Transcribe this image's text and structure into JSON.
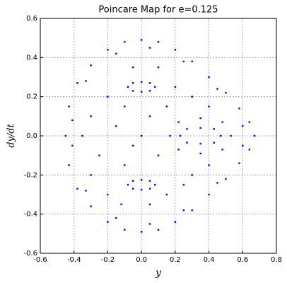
{
  "chart_data": {
    "type": "scatter",
    "title": "Poincare Map for e=0.125",
    "xlabel": "y",
    "ylabel": "dy/dt",
    "xlim": [
      -0.6,
      0.8
    ],
    "ylim": [
      -0.6,
      0.6
    ],
    "xticks": [
      -0.6,
      -0.4,
      -0.2,
      {
        "value": 0,
        "label": "0.0"
      },
      0.2,
      0.4,
      0.6,
      0.8
    ],
    "yticks": [
      -0.6,
      -0.4,
      -0.2,
      {
        "value": 0,
        "label": "0.0"
      },
      0.2,
      0.4,
      0.6
    ],
    "grid": true,
    "color": "#0000ff",
    "x": [
      0,
      0.1,
      0.2,
      0.3,
      0.4,
      0.5,
      0.58,
      0.64,
      0.67,
      0.64,
      0.58,
      0.5,
      0.4,
      0.3,
      0.2,
      0.1,
      0,
      -0.1,
      -0.2,
      -0.3,
      -0.38,
      -0.43,
      -0.45,
      -0.43,
      -0.38,
      -0.3,
      -0.2,
      -0.1,
      0.05,
      0.25,
      0.45,
      0.6,
      0.6,
      0.45,
      0.25,
      0.05,
      -0.15,
      -0.33,
      -0.41,
      -0.41,
      -0.33,
      -0.15,
      -0.08,
      -0.05,
      0,
      0.05,
      0.08,
      0.05,
      0,
      -0.05,
      -0.08,
      -0.05,
      0,
      0.05,
      0.08,
      0.05,
      0,
      -0.05,
      0.23,
      0.27,
      0.35,
      0.43,
      0.47,
      0.43,
      0.35,
      0.27,
      0.17,
      0.22,
      0.35,
      0.48,
      0.53,
      0.48,
      0.35,
      0.22,
      -0.3,
      -0.25,
      -0.2,
      -0.15,
      -0.1,
      -0.05,
      0.1,
      0.15,
      0.05,
      0.1,
      0.15,
      -0.2,
      -0.3,
      0.3,
      0.3,
      0.2,
      0.25,
      -0.1,
      0,
      -0.05,
      -0.35,
      0.05,
      -0.12,
      0.4,
      0.4
    ],
    "y": [
      0.49,
      0.48,
      0.44,
      0.38,
      0.3,
      0.22,
      0.14,
      0.07,
      0,
      -0.07,
      -0.14,
      -0.22,
      -0.3,
      -0.38,
      -0.44,
      -0.48,
      -0.49,
      -0.48,
      -0.44,
      -0.36,
      -0.27,
      -0.15,
      0,
      0.15,
      0.27,
      0.36,
      0.44,
      0.48,
      0.45,
      0.38,
      0.24,
      0.05,
      -0.05,
      -0.24,
      -0.38,
      -0.45,
      -0.42,
      -0.28,
      -0.05,
      0.08,
      0.28,
      0.42,
      0.25,
      0.27,
      0.275,
      0.27,
      0.25,
      0.23,
      0.225,
      0.23,
      -0.25,
      -0.23,
      -0.225,
      -0.23,
      -0.25,
      -0.27,
      -0.275,
      -0.27,
      0,
      0.035,
      0.04,
      0.035,
      0,
      -0.035,
      -0.04,
      -0.035,
      0,
      0.07,
      0.09,
      0.07,
      0,
      -0.07,
      -0.09,
      -0.07,
      0.1,
      -0.1,
      0.2,
      0.05,
      -0.15,
      0.35,
      0.35,
      0.15,
      0.1,
      -0.1,
      -0.3,
      -0.3,
      -0.2,
      0.2,
      -0.2,
      0.25,
      -0.25,
      0.15,
      0,
      -0.05,
      0,
      -0.35,
      -0.35,
      0.15,
      -0.15
    ]
  }
}
